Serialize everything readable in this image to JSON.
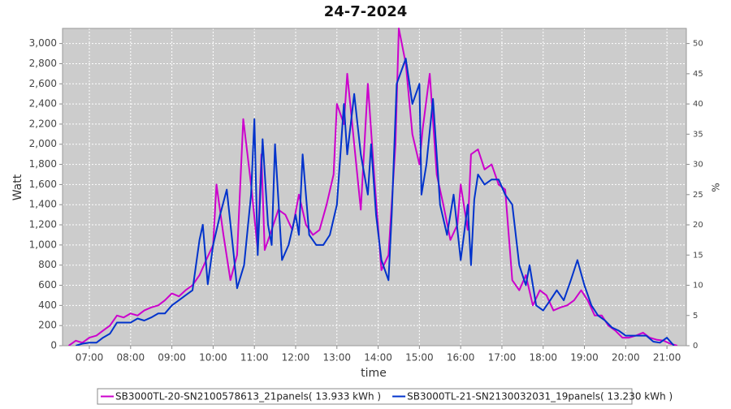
{
  "chart_data": {
    "type": "line",
    "title": "24-7-2024",
    "xlabel": "time",
    "ylabel": "Watt",
    "y2label": "%",
    "xlim": [
      6.35,
      21.47
    ],
    "xticks": [
      {
        "value": 7,
        "label": "07:00"
      },
      {
        "value": 8,
        "label": "08:00"
      },
      {
        "value": 9,
        "label": "09:00"
      },
      {
        "value": 10,
        "label": "10:00"
      },
      {
        "value": 11,
        "label": "11:00"
      },
      {
        "value": 12,
        "label": "12:00"
      },
      {
        "value": 13,
        "label": "13:00"
      },
      {
        "value": 14,
        "label": "14:00"
      },
      {
        "value": 15,
        "label": "15:00"
      },
      {
        "value": 16,
        "label": "16:00"
      },
      {
        "value": 17,
        "label": "17:00"
      },
      {
        "value": 18,
        "label": "18:00"
      },
      {
        "value": 19,
        "label": "19:00"
      },
      {
        "value": 20,
        "label": "20:00"
      },
      {
        "value": 21,
        "label": "21:00"
      }
    ],
    "ylim": [
      0,
      3150
    ],
    "yticks": [
      0,
      200,
      400,
      600,
      800,
      {
        "value": 1000,
        "label": "1,000"
      },
      {
        "value": 1200,
        "label": "1,200"
      },
      {
        "value": 1400,
        "label": "1,400"
      },
      {
        "value": 1600,
        "label": "1,600"
      },
      {
        "value": 1800,
        "label": "1,800"
      },
      {
        "value": 2000,
        "label": "2,000"
      },
      {
        "value": 2200,
        "label": "2,200"
      },
      {
        "value": 2400,
        "label": "2,400"
      },
      {
        "value": 2600,
        "label": "2,600"
      },
      {
        "value": 2800,
        "label": "2,800"
      },
      {
        "value": 3000,
        "label": "3,000"
      }
    ],
    "y2lim": [
      0,
      52.5
    ],
    "y2ticks": [
      0,
      5,
      10,
      15,
      20,
      25,
      30,
      35,
      40,
      45,
      50
    ],
    "grid": true,
    "legend": "bottom",
    "series": [
      {
        "name": "SB3000TL-20-SN2100578613_21panels( 13.933 kWh )",
        "color": "#cc00cc",
        "x": [
          6.5,
          6.67,
          6.83,
          7,
          7.17,
          7.33,
          7.5,
          7.67,
          7.83,
          8,
          8.17,
          8.33,
          8.5,
          8.67,
          8.83,
          9,
          9.17,
          9.33,
          9.5,
          9.67,
          9.83,
          10,
          10.08,
          10.25,
          10.42,
          10.58,
          10.73,
          10.92,
          11.08,
          11.17,
          11.25,
          11.42,
          11.58,
          11.75,
          11.92,
          12.08,
          12.25,
          12.42,
          12.58,
          12.75,
          12.92,
          13,
          13.17,
          13.25,
          13.42,
          13.58,
          13.75,
          13.92,
          14.08,
          14.25,
          14.42,
          14.5,
          14.67,
          14.83,
          15,
          15.08,
          15.25,
          15.42,
          15.58,
          15.75,
          15.92,
          16,
          16.17,
          16.25,
          16.42,
          16.58,
          16.75,
          16.92,
          17.08,
          17.25,
          17.42,
          17.58,
          17.75,
          17.92,
          18.08,
          18.25,
          18.42,
          18.58,
          18.75,
          18.92,
          19.08,
          19.25,
          19.42,
          19.58,
          19.75,
          19.92,
          20.08,
          20.25,
          20.42,
          20.58,
          20.75,
          20.92,
          21.08,
          21.25
        ],
        "values": [
          0,
          50,
          30,
          80,
          100,
          150,
          200,
          300,
          280,
          320,
          300,
          350,
          380,
          400,
          450,
          520,
          490,
          550,
          600,
          700,
          850,
          1000,
          1600,
          1100,
          650,
          900,
          2250,
          1600,
          950,
          1900,
          950,
          1150,
          1350,
          1300,
          1150,
          1500,
          1200,
          1100,
          1150,
          1400,
          1700,
          2400,
          2200,
          2700,
          2000,
          1350,
          2600,
          1600,
          750,
          900,
          2000,
          3150,
          2800,
          2100,
          1800,
          2150,
          2700,
          1700,
          1400,
          1050,
          1200,
          1600,
          1150,
          1900,
          1950,
          1750,
          1800,
          1600,
          1550,
          650,
          550,
          700,
          400,
          550,
          500,
          350,
          380,
          400,
          450,
          550,
          450,
          300,
          300,
          200,
          150,
          80,
          80,
          100,
          130,
          80,
          60,
          50,
          20,
          0
        ]
      },
      {
        "name": "SB3000TL-21-SN2130032031_19panels( 13.230 kWh )",
        "color": "#0033cc",
        "x": [
          6.67,
          6.83,
          7,
          7.17,
          7.33,
          7.5,
          7.67,
          7.83,
          8,
          8.17,
          8.33,
          8.5,
          8.67,
          8.83,
          9,
          9.17,
          9.33,
          9.5,
          9.67,
          9.75,
          9.87,
          10,
          10.17,
          10.33,
          10.5,
          10.58,
          10.75,
          10.92,
          11,
          11.08,
          11.2,
          11.33,
          11.42,
          11.5,
          11.67,
          11.83,
          12,
          12.08,
          12.17,
          12.33,
          12.5,
          12.67,
          12.83,
          13,
          13.17,
          13.25,
          13.42,
          13.58,
          13.75,
          13.83,
          13.95,
          14.08,
          14.25,
          14.33,
          14.45,
          14.67,
          14.83,
          15,
          15.05,
          15.17,
          15.33,
          15.5,
          15.67,
          15.83,
          16,
          16.08,
          16.17,
          16.25,
          16.33,
          16.42,
          16.58,
          16.75,
          16.92,
          17.08,
          17.25,
          17.42,
          17.58,
          17.67,
          17.83,
          18,
          18.17,
          18.33,
          18.5,
          18.67,
          18.83,
          19,
          19.17,
          19.33,
          19.5,
          19.67,
          19.83,
          20,
          20.17,
          20.33,
          20.5,
          20.67,
          20.83,
          21,
          21.17
        ],
        "values": [
          0,
          20,
          30,
          30,
          80,
          120,
          230,
          230,
          230,
          270,
          250,
          280,
          320,
          320,
          400,
          450,
          500,
          550,
          1050,
          1200,
          610,
          1000,
          1300,
          1550,
          900,
          570,
          800,
          1500,
          2250,
          900,
          2050,
          1200,
          1000,
          2000,
          850,
          1000,
          1300,
          1100,
          1900,
          1100,
          1000,
          1000,
          1100,
          1400,
          2400,
          1900,
          2500,
          1900,
          1500,
          2000,
          1300,
          850,
          650,
          1300,
          2600,
          2850,
          2400,
          2600,
          1500,
          1800,
          2450,
          1400,
          1100,
          1500,
          850,
          1100,
          1400,
          800,
          1450,
          1700,
          1600,
          1650,
          1650,
          1500,
          1400,
          800,
          600,
          800,
          400,
          350,
          450,
          550,
          450,
          650,
          850,
          600,
          400,
          300,
          250,
          180,
          150,
          100,
          100,
          100,
          100,
          40,
          30,
          80,
          0
        ]
      }
    ]
  }
}
